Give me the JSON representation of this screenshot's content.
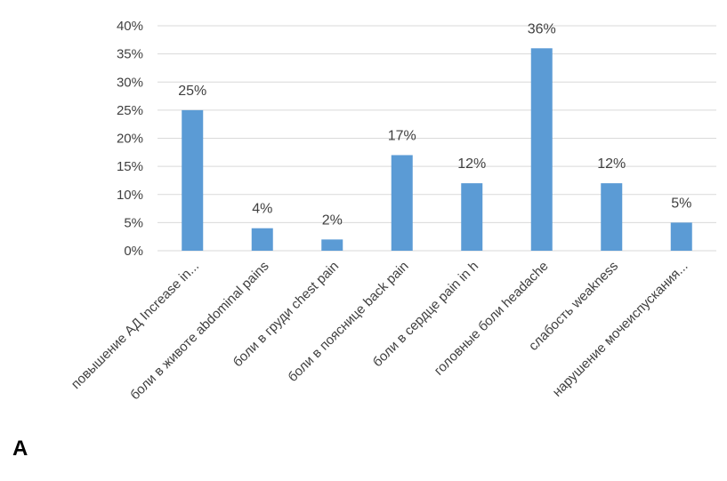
{
  "panel_label": "A",
  "colors": {
    "bar": "#5b9bd5",
    "grid": "#d9d9d9",
    "text": "#404040"
  },
  "chart_data": {
    "type": "bar",
    "title": "",
    "xlabel": "",
    "ylabel": "",
    "ylim": [
      0,
      40
    ],
    "yticks": [
      "0%",
      "5%",
      "10%",
      "15%",
      "20%",
      "25%",
      "30%",
      "35%",
      "40%"
    ],
    "grid": true,
    "categories": [
      "повышение АД Increase in...",
      "боли в животе abdominal pains",
      "боли в груди chest pain",
      "боли в пояснице back pain",
      "боли в сердце pain in h",
      "головные боли headache",
      "слабость weakness",
      "нарушение мочеиспускания..."
    ],
    "values": [
      25,
      4,
      2,
      17,
      12,
      36,
      12,
      5
    ],
    "data_labels": [
      "25%",
      "4%",
      "2%",
      "17%",
      "12%",
      "36%",
      "12%",
      "5%"
    ]
  }
}
